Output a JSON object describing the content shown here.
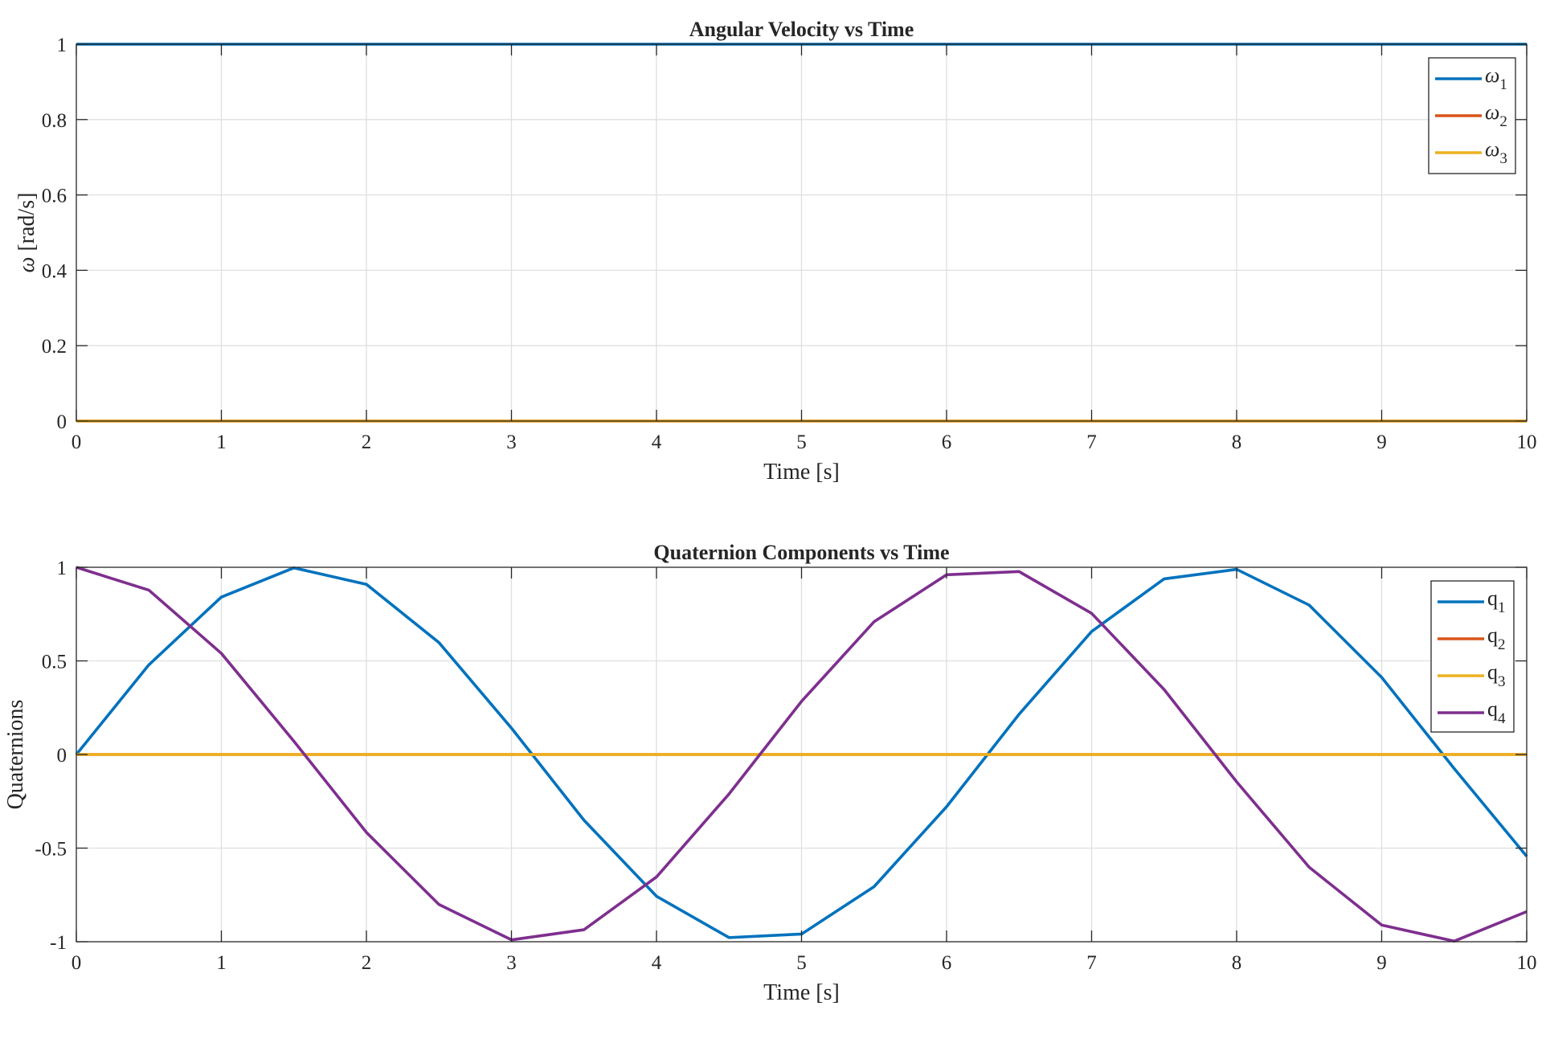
{
  "chart_data": [
    {
      "type": "line",
      "title": "Angular Velocity vs Time",
      "xlabel": "Time [s]",
      "ylabel_symbol": "ω",
      "ylabel": " [rad/s]",
      "xlim": [
        0,
        10
      ],
      "ylim": [
        0,
        1
      ],
      "xticks": [
        0,
        1,
        2,
        3,
        4,
        5,
        6,
        7,
        8,
        9,
        10
      ],
      "yticks": [
        0,
        0.2,
        0.4,
        0.6,
        0.8,
        1
      ],
      "grid": true,
      "legend_position": "top-right",
      "x": [
        0,
        10
      ],
      "series": [
        {
          "name": "ω",
          "subscript": "1",
          "color": "#0072BD",
          "values": [
            1,
            1
          ]
        },
        {
          "name": "ω",
          "subscript": "2",
          "color": "#D95319",
          "values": [
            0,
            0
          ]
        },
        {
          "name": "ω",
          "subscript": "3",
          "color": "#EDB120",
          "values": [
            0,
            0
          ]
        }
      ]
    },
    {
      "type": "line",
      "title": "Quaternion Components vs Time",
      "xlabel": "Time [s]",
      "ylabel": "Quaternions",
      "xlim": [
        0,
        10
      ],
      "ylim": [
        -1,
        1
      ],
      "xticks": [
        0,
        1,
        2,
        3,
        4,
        5,
        6,
        7,
        8,
        9,
        10
      ],
      "yticks": [
        -1,
        -0.5,
        0,
        0.5,
        1
      ],
      "grid": true,
      "legend_position": "top-right",
      "x": [
        0,
        0.5,
        1,
        1.5,
        2,
        2.5,
        3,
        3.5,
        4,
        4.5,
        5,
        5.5,
        6,
        6.5,
        7,
        7.5,
        8,
        8.5,
        9,
        9.5,
        10
      ],
      "series": [
        {
          "name": "q",
          "subscript": "1",
          "color": "#0072BD",
          "values": [
            0,
            0.479,
            0.841,
            0.997,
            0.909,
            0.598,
            0.141,
            -0.351,
            -0.757,
            -0.978,
            -0.959,
            -0.706,
            -0.279,
            0.215,
            0.657,
            0.938,
            0.989,
            0.798,
            0.412,
            -0.075,
            -0.544
          ]
        },
        {
          "name": "q",
          "subscript": "2",
          "color": "#D95319",
          "values": [
            0,
            0,
            0,
            0,
            0,
            0,
            0,
            0,
            0,
            0,
            0,
            0,
            0,
            0,
            0,
            0,
            0,
            0,
            0,
            0,
            0
          ]
        },
        {
          "name": "q",
          "subscript": "3",
          "color": "#EDB120",
          "values": [
            0,
            0,
            0,
            0,
            0,
            0,
            0,
            0,
            0,
            0,
            0,
            0,
            0,
            0,
            0,
            0,
            0,
            0,
            0,
            0,
            0
          ]
        },
        {
          "name": "q",
          "subscript": "4",
          "color": "#7E2F8E",
          "values": [
            1,
            0.878,
            0.54,
            0.071,
            -0.416,
            -0.801,
            -0.99,
            -0.936,
            -0.654,
            -0.211,
            0.284,
            0.709,
            0.96,
            0.977,
            0.754,
            0.347,
            -0.146,
            -0.602,
            -0.911,
            -0.997,
            -0.839
          ]
        }
      ]
    }
  ]
}
